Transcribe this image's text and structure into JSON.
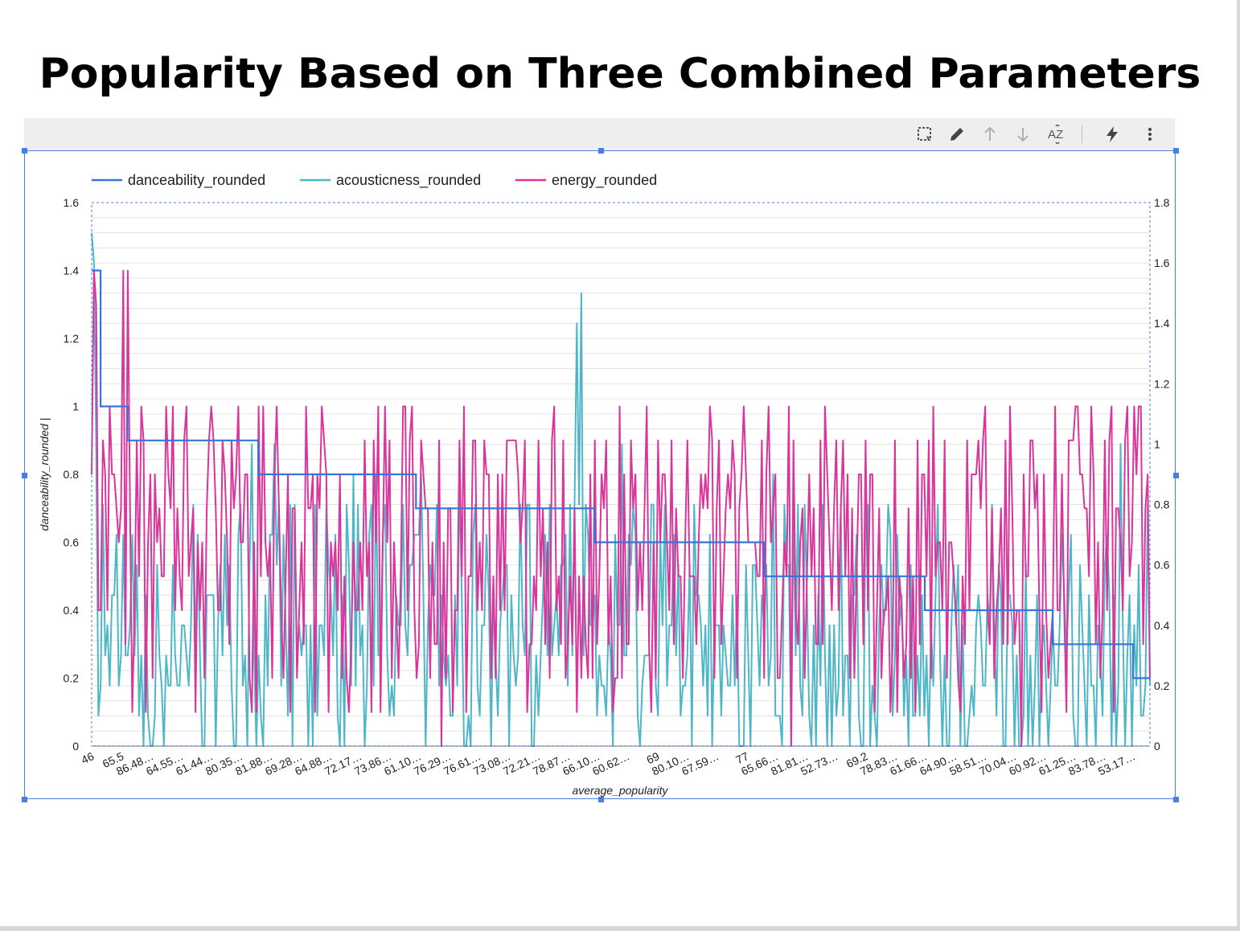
{
  "title": "Popularity Based on Three Combined Parameters",
  "toolbar": {
    "icons": [
      "select-icon",
      "pencil-icon",
      "arrow-up-icon",
      "arrow-down-icon",
      "sort-az-icon",
      "lightning-icon",
      "more-vert-icon"
    ],
    "sort_label": "AZ"
  },
  "colors": {
    "danceability": "#3a73d6",
    "acousticness": "#4fb6c8",
    "energy": "#d9359b",
    "selection": "#4a7ee0",
    "toolbar_bg": "#eeeeee"
  },
  "chart_data": {
    "type": "line",
    "xlabel": "average_popularity",
    "ylabel": "danceability_rounded |",
    "y_left_lim": [
      0,
      1.6
    ],
    "y_left_ticks": [
      "0",
      "0.2",
      "0.4",
      "0.6",
      "0.8",
      "1",
      "1.2",
      "1.4",
      "1.6"
    ],
    "y_right_lim": [
      0,
      1.8
    ],
    "y_right_ticks": [
      "0",
      "0.2",
      "0.4",
      "0.6",
      "0.8",
      "1",
      "1.2",
      "1.4",
      "1.6",
      "1.8"
    ],
    "grid": true,
    "legend_position": "top-left",
    "x_tick_labels": [
      "46",
      "65.5",
      "86.48…",
      "64.55…",
      "61.44…",
      "80.35…",
      "81.88…",
      "69.28…",
      "64.88…",
      "72.17…",
      "73.86…",
      "61.10…",
      "76.29…",
      "76.61…",
      "73.08…",
      "72.21…",
      "78.87…",
      "66.10…",
      "60.62…",
      "69",
      "80.10…",
      "67.59…",
      "77",
      "65.66…",
      "81.81…",
      "52.73…",
      "69.2",
      "78.83…",
      "61.66…",
      "64.90…",
      "58.51…",
      "70.04…",
      "60.92…",
      "61.25…",
      "83.78…",
      "53.17…"
    ],
    "series": [
      {
        "name": "danceability_rounded",
        "axis": "left",
        "steps": [
          {
            "from_tick": 0,
            "to_tick": 0.3,
            "value": 1.4
          },
          {
            "from_tick": 0.3,
            "to_tick": 1.2,
            "value": 1.0
          },
          {
            "from_tick": 1.2,
            "to_tick": 5.6,
            "value": 0.9
          },
          {
            "from_tick": 5.6,
            "to_tick": 10.9,
            "value": 0.8
          },
          {
            "from_tick": 10.9,
            "to_tick": 16.9,
            "value": 0.7
          },
          {
            "from_tick": 16.9,
            "to_tick": 22.6,
            "value": 0.6
          },
          {
            "from_tick": 22.6,
            "to_tick": 28.0,
            "value": 0.5
          },
          {
            "from_tick": 28.0,
            "to_tick": 32.3,
            "value": 0.4
          },
          {
            "from_tick": 32.3,
            "to_tick": 35.0,
            "value": 0.3
          },
          {
            "from_tick": 35.0,
            "to_tick": 35.6,
            "value": 0.2
          }
        ]
      },
      {
        "name": "acousticness_rounded",
        "axis": "right",
        "approx_range": [
          0,
          1.7
        ],
        "seed": 11
      },
      {
        "name": "energy_rounded",
        "axis": "left",
        "approx_range": [
          0,
          1.4
        ],
        "seed": 29
      }
    ]
  }
}
